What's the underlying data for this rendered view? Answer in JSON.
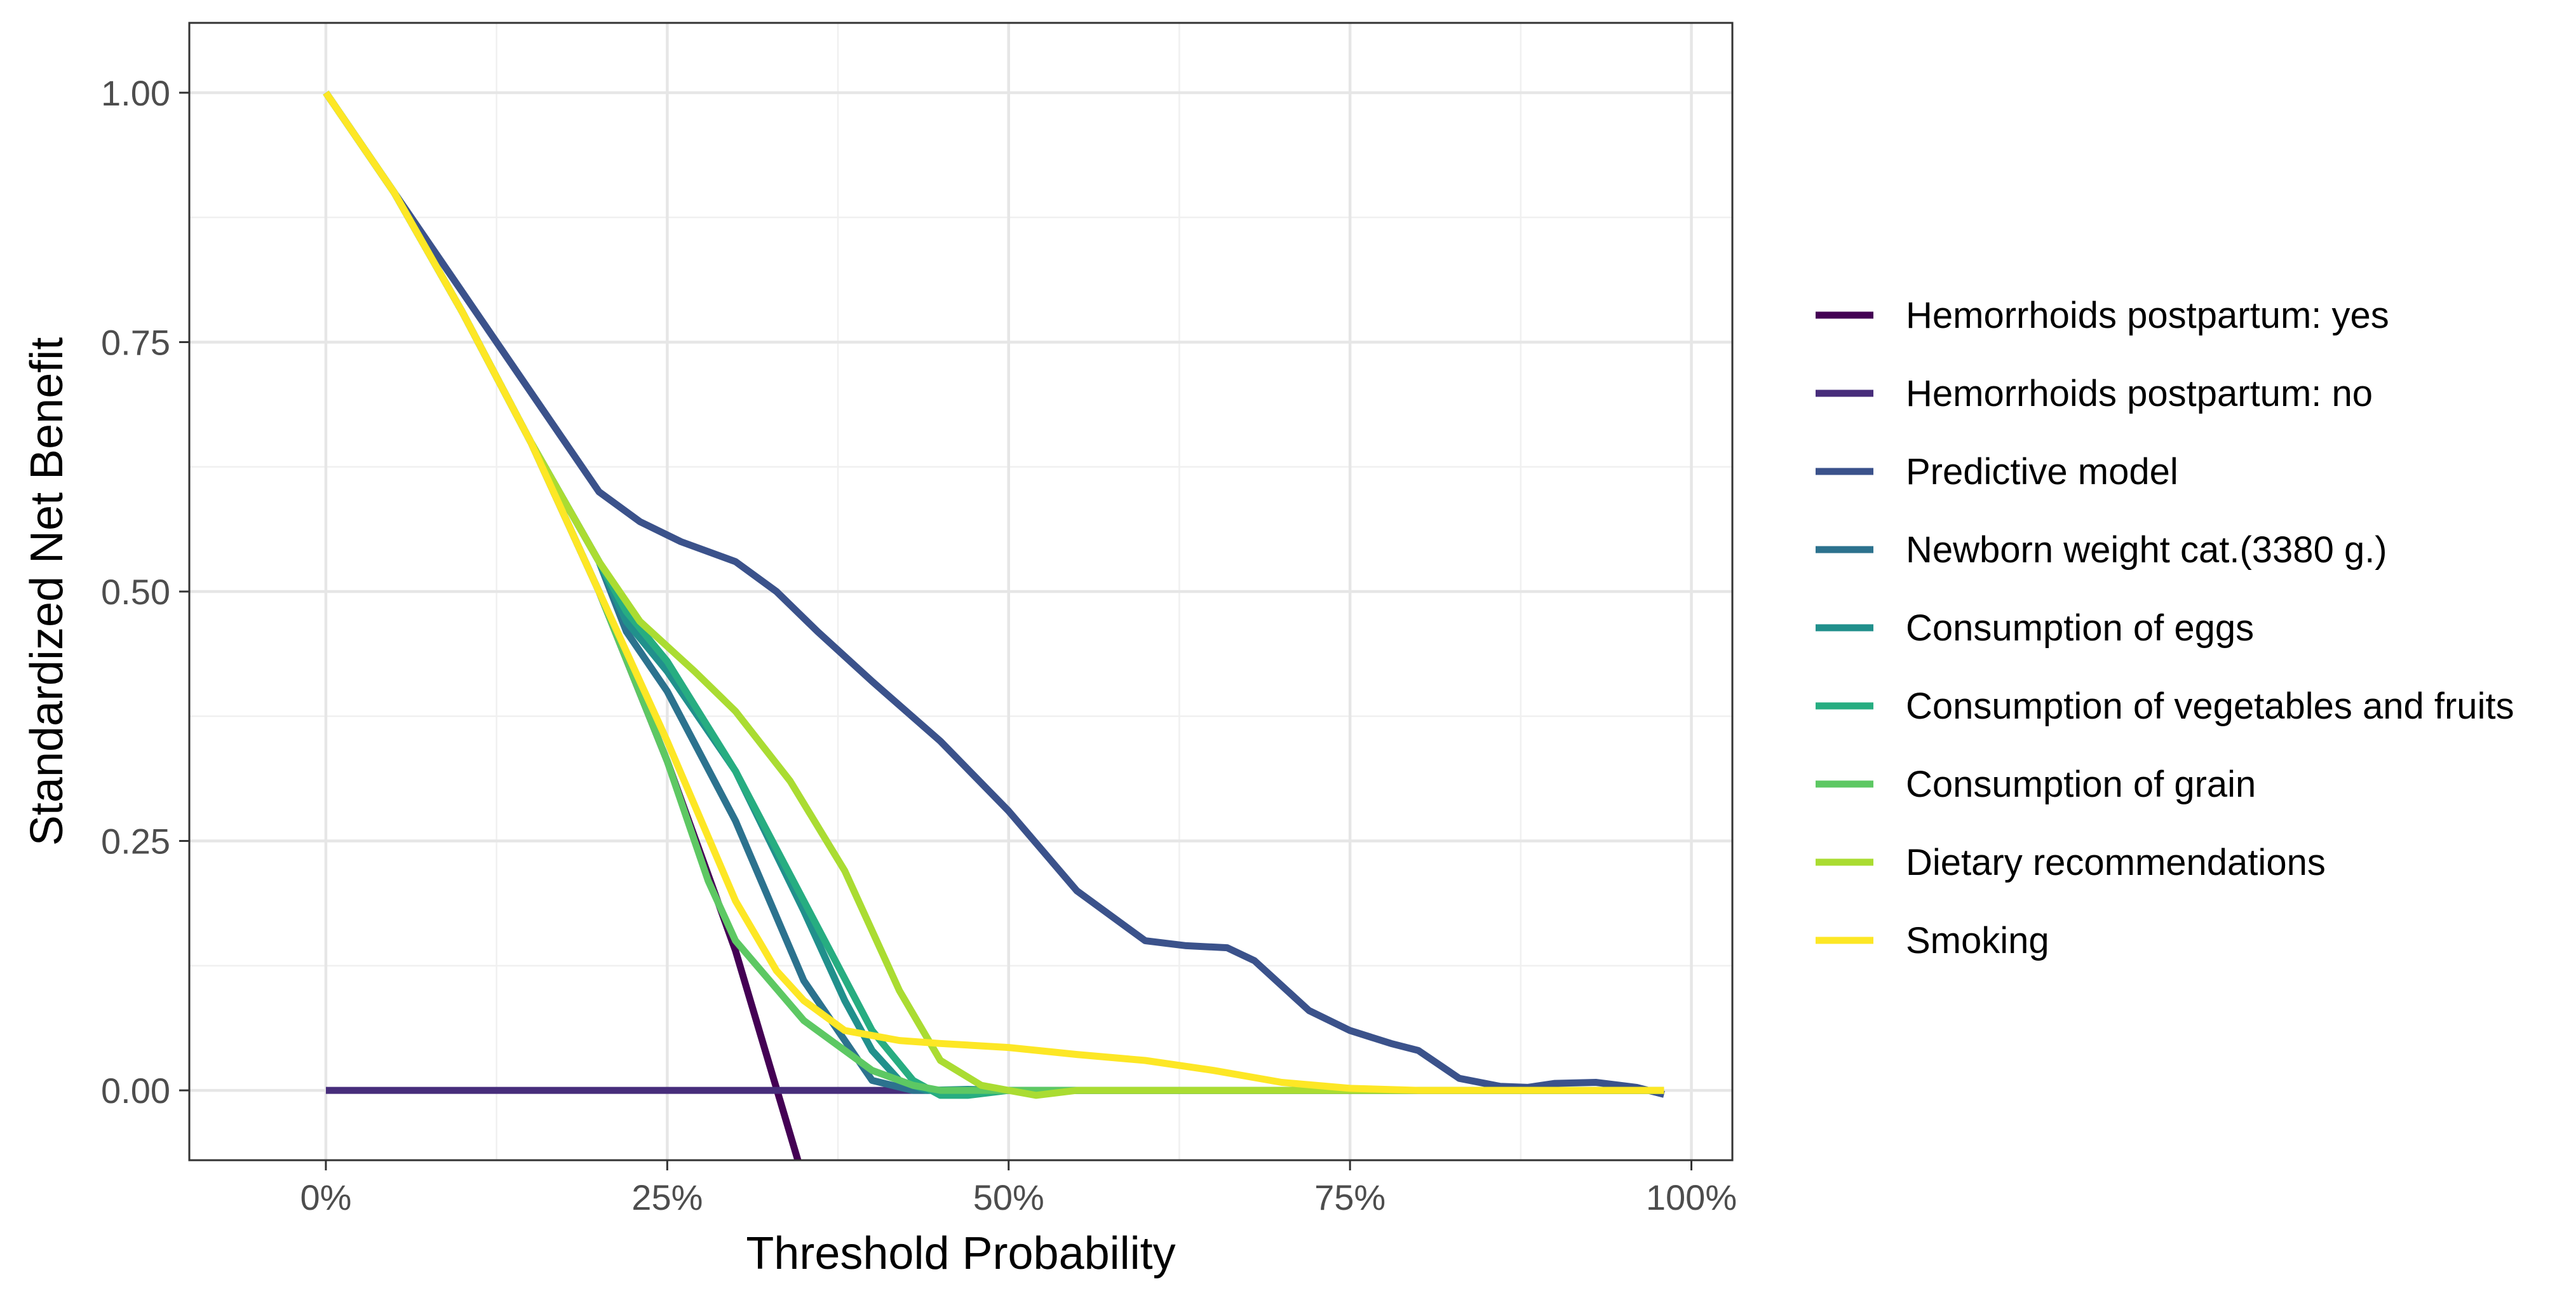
{
  "chart_data": {
    "type": "line",
    "title": "",
    "xlabel": "Threshold Probability",
    "ylabel": "Standardized Net Benefit",
    "xlim": [
      -0.1,
      1.03
    ],
    "ylim": [
      -0.07,
      1.07
    ],
    "x_ticks": [
      0,
      0.25,
      0.5,
      0.75,
      1.0
    ],
    "x_tick_labels": [
      "0%",
      "25%",
      "50%",
      "75%",
      "100%"
    ],
    "y_ticks": [
      0,
      0.25,
      0.5,
      0.75,
      1.0
    ],
    "y_tick_labels": [
      "0.00",
      "0.25",
      "0.50",
      "0.75",
      "1.00"
    ],
    "grid": true,
    "legend_position": "right",
    "series": [
      {
        "name": "Hemorrhoids postpartum: yes",
        "color": "#440154",
        "x": [
          0,
          0.05,
          0.1,
          0.15,
          0.2,
          0.25,
          0.3,
          0.35,
          0.37
        ],
        "y": [
          1.0,
          0.9,
          0.78,
          0.65,
          0.5,
          0.33,
          0.14,
          -0.09,
          -0.12
        ]
      },
      {
        "name": "Hemorrhoids postpartum: no",
        "color": "#472D7B",
        "x": [
          0,
          0.98
        ],
        "y": [
          0,
          0
        ]
      },
      {
        "name": "Predictive model",
        "color": "#3B528B",
        "x": [
          0,
          0.05,
          0.1,
          0.15,
          0.2,
          0.23,
          0.26,
          0.3,
          0.33,
          0.36,
          0.4,
          0.45,
          0.5,
          0.55,
          0.6,
          0.63,
          0.66,
          0.68,
          0.72,
          0.75,
          0.78,
          0.8,
          0.83,
          0.86,
          0.88,
          0.9,
          0.93,
          0.96,
          0.98
        ],
        "y": [
          1.0,
          0.9,
          0.8,
          0.7,
          0.6,
          0.57,
          0.55,
          0.53,
          0.5,
          0.46,
          0.41,
          0.35,
          0.28,
          0.2,
          0.15,
          0.145,
          0.143,
          0.13,
          0.08,
          0.06,
          0.047,
          0.04,
          0.012,
          0.004,
          0.003,
          0.007,
          0.008,
          0.003,
          -0.004
        ]
      },
      {
        "name": "Newborn weight cat.(3380 g.)",
        "color": "#2C728E",
        "x": [
          0,
          0.05,
          0.1,
          0.15,
          0.2,
          0.22,
          0.25,
          0.3,
          0.35,
          0.4,
          0.43,
          0.45,
          0.5,
          0.6,
          0.7,
          0.8,
          0.9,
          0.98
        ],
        "y": [
          1.0,
          0.9,
          0.78,
          0.65,
          0.53,
          0.46,
          0.4,
          0.27,
          0.11,
          0.01,
          0.0,
          0.0,
          0.0,
          0.0,
          0.0,
          0.0,
          0.0,
          0.0
        ]
      },
      {
        "name": "Consumption of eggs",
        "color": "#21908C",
        "x": [
          0,
          0.05,
          0.1,
          0.15,
          0.2,
          0.22,
          0.25,
          0.3,
          0.35,
          0.38,
          0.4,
          0.42,
          0.44,
          0.47,
          0.5,
          0.6,
          0.7,
          0.8,
          0.9,
          0.98
        ],
        "y": [
          1.0,
          0.9,
          0.78,
          0.65,
          0.53,
          0.47,
          0.42,
          0.32,
          0.18,
          0.09,
          0.04,
          0.01,
          0.0,
          0.001,
          0.0,
          0.0,
          0.0,
          0.0,
          0.0,
          0.0
        ]
      },
      {
        "name": "Consumption of vegetables and fruits",
        "color": "#27AD81",
        "x": [
          0,
          0.05,
          0.1,
          0.15,
          0.2,
          0.22,
          0.25,
          0.3,
          0.35,
          0.4,
          0.43,
          0.45,
          0.47,
          0.5,
          0.6,
          0.7,
          0.8,
          0.9,
          0.98
        ],
        "y": [
          1.0,
          0.9,
          0.78,
          0.65,
          0.53,
          0.48,
          0.43,
          0.32,
          0.19,
          0.06,
          0.01,
          -0.005,
          -0.005,
          0.0,
          0.0,
          0.0,
          0.0,
          0.0,
          0.0
        ]
      },
      {
        "name": "Consumption of grain",
        "color": "#5DC863",
        "x": [
          0,
          0.05,
          0.1,
          0.15,
          0.2,
          0.25,
          0.28,
          0.3,
          0.35,
          0.4,
          0.43,
          0.45,
          0.5,
          0.6,
          0.7,
          0.8,
          0.9,
          0.98
        ],
        "y": [
          1.0,
          0.9,
          0.78,
          0.65,
          0.5,
          0.33,
          0.21,
          0.15,
          0.07,
          0.02,
          0.005,
          0.0,
          0.0,
          0.0,
          0.0,
          0.0,
          0.0,
          0.0
        ]
      },
      {
        "name": "Dietary recommendations",
        "color": "#AADC32",
        "x": [
          0,
          0.05,
          0.1,
          0.15,
          0.2,
          0.23,
          0.27,
          0.3,
          0.34,
          0.38,
          0.42,
          0.45,
          0.48,
          0.5,
          0.52,
          0.55,
          0.6,
          0.7,
          0.8,
          0.9,
          0.98
        ],
        "y": [
          1.0,
          0.9,
          0.78,
          0.65,
          0.53,
          0.47,
          0.42,
          0.38,
          0.31,
          0.22,
          0.1,
          0.03,
          0.005,
          0.0,
          -0.005,
          0.0,
          0.0,
          0.0,
          0.0,
          0.0,
          0.0
        ]
      },
      {
        "name": "Smoking",
        "color": "#FDE725",
        "x": [
          0,
          0.05,
          0.1,
          0.15,
          0.2,
          0.25,
          0.3,
          0.33,
          0.35,
          0.38,
          0.42,
          0.45,
          0.5,
          0.55,
          0.6,
          0.65,
          0.7,
          0.75,
          0.8,
          0.9,
          0.98
        ],
        "y": [
          1.0,
          0.9,
          0.78,
          0.65,
          0.5,
          0.35,
          0.19,
          0.12,
          0.09,
          0.06,
          0.05,
          0.047,
          0.043,
          0.036,
          0.03,
          0.02,
          0.008,
          0.002,
          0.0,
          0.0,
          0.0
        ]
      }
    ]
  }
}
